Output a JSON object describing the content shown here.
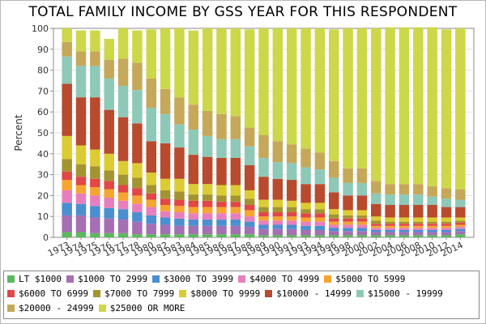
{
  "chart_data": {
    "type": "bar",
    "stacked": true,
    "title": "TOTAL FAMILY INCOME BY GSS YEAR FOR THIS RESPONDENT",
    "ylabel": "Percent",
    "xlabel": "",
    "ylim": [
      0,
      100
    ],
    "yticks": [
      0,
      10,
      20,
      30,
      40,
      50,
      60,
      70,
      80,
      90,
      100
    ],
    "categories": [
      "1973",
      "1974",
      "1975",
      "1976",
      "1977",
      "1978",
      "1980",
      "1982",
      "1983",
      "1984",
      "1985",
      "1986",
      "1987",
      "1988",
      "1989",
      "1990",
      "1991",
      "1993",
      "1994",
      "1996",
      "1998",
      "2000",
      "2002",
      "2004",
      "2006",
      "2008",
      "2010",
      "2012",
      "2014"
    ],
    "xtick_labels": [
      "1973",
      "1974",
      "1975",
      "1976",
      "1977",
      "1978",
      "1980",
      "1982",
      "1983",
      "1984",
      "1985",
      "1986",
      "1987",
      "1988",
      "1989",
      "1990",
      "1991",
      "1993",
      "1994",
      "1996",
      "1998",
      "2000",
      "2002",
      "2004",
      "2006",
      "2008",
      "2010",
      "2012",
      "2014"
    ],
    "grid": true,
    "legend_position": "bottom",
    "series": [
      {
        "name": "LT $1000",
        "color": "#5cb85c",
        "values": [
          2.5,
          2.5,
          2,
          2,
          2,
          1.5,
          1.5,
          1.5,
          1.5,
          1.5,
          1.5,
          1.5,
          1.5,
          1.5,
          1,
          1,
          1,
          1,
          1,
          1,
          1,
          1,
          1,
          1,
          1,
          1,
          1,
          1,
          1.5
        ]
      },
      {
        "name": "$1000 TO 2999",
        "color": "#a56fb4",
        "values": [
          8,
          8,
          7.5,
          7,
          6.5,
          6,
          5,
          4.5,
          4,
          4,
          4,
          4,
          4,
          3.5,
          3,
          3,
          3,
          2.5,
          2.5,
          2,
          2,
          2,
          1.5,
          1.5,
          1.5,
          1.5,
          1.5,
          1.5,
          1.5
        ]
      },
      {
        "name": "$3000 TO 3999",
        "color": "#4a8fd0",
        "values": [
          6,
          5.5,
          5.5,
          5,
          5,
          4.5,
          4,
          3.5,
          3.5,
          3,
          3,
          3,
          3,
          2.5,
          2,
          2,
          2,
          2,
          2,
          1.5,
          1.5,
          1.5,
          1,
          1,
          1,
          1,
          1,
          1,
          1
        ]
      },
      {
        "name": "$4000 TO 4999",
        "color": "#e87fbd",
        "values": [
          6,
          5,
          5,
          5,
          4,
          4,
          4,
          3,
          3,
          3,
          3,
          3,
          3,
          2.5,
          2,
          2,
          2,
          2,
          2,
          1.5,
          1.5,
          1.5,
          1,
          1,
          1,
          1,
          1,
          1,
          1
        ]
      },
      {
        "name": "$5000 TO 5999",
        "color": "#f5a531",
        "values": [
          5,
          4,
          4,
          4,
          4,
          4,
          3.5,
          3,
          3,
          3,
          3,
          3,
          3,
          3,
          2,
          2,
          2,
          2,
          2,
          1.5,
          1.5,
          1.5,
          1,
          1,
          1,
          1,
          1,
          1,
          1
        ]
      },
      {
        "name": "$6000 TO 6999",
        "color": "#e24646",
        "values": [
          4,
          4,
          4,
          4,
          3.5,
          3.5,
          3,
          3,
          3,
          3,
          3,
          2.5,
          2.5,
          2.5,
          2,
          2,
          2,
          2,
          2,
          1.5,
          1.5,
          1.5,
          1,
          1,
          1,
          1,
          1,
          1,
          1
        ]
      },
      {
        "name": "$7000 TO 7999",
        "color": "#a39432",
        "values": [
          6,
          6,
          6,
          5,
          5,
          5,
          4,
          4,
          4,
          3,
          3,
          3,
          3,
          3,
          2.5,
          2.5,
          2.5,
          2,
          2,
          2,
          1.5,
          1.5,
          1.5,
          1,
          1,
          1,
          1,
          1,
          1
        ]
      },
      {
        "name": "$8000 TO 9999",
        "color": "#dccc33",
        "values": [
          11,
          9,
          8,
          8,
          6.5,
          7,
          6,
          5.5,
          6,
          5,
          5,
          5,
          5,
          4,
          3.5,
          3.5,
          3,
          3,
          3,
          2.5,
          2.5,
          2.5,
          2,
          2,
          2,
          2,
          2,
          2,
          1.5
        ]
      },
      {
        "name": "$10000 - 14999",
        "color": "#b84a2e",
        "values": [
          25,
          23,
          25,
          21,
          21,
          19,
          15,
          17,
          15,
          14,
          13,
          13,
          13,
          12,
          11,
          10,
          10,
          9,
          9,
          8,
          7,
          7,
          6,
          6,
          6,
          6,
          6,
          5,
          5
        ]
      },
      {
        "name": "$15000 - 19999",
        "color": "#8ec9b8",
        "values": [
          13,
          15,
          15,
          15,
          15,
          16,
          16,
          14,
          11,
          12,
          10,
          9,
          9,
          9,
          9,
          8,
          8,
          8,
          7,
          7,
          6,
          6,
          5,
          5,
          5,
          5,
          4,
          4,
          3.5
        ]
      },
      {
        "name": "$20000 - 24999",
        "color": "#c6a85a",
        "values": [
          7,
          7,
          7,
          9,
          13,
          13,
          14,
          12,
          13,
          12,
          12,
          12,
          11,
          9,
          11,
          10,
          9,
          9,
          8,
          8,
          7,
          7,
          6,
          5,
          5,
          5,
          5,
          5,
          5
        ]
      },
      {
        "name": "$25000 OR MORE",
        "color": "#ccd84a",
        "values": [
          6.5,
          10,
          10,
          10,
          14.5,
          15.5,
          23.5,
          29,
          33,
          35.5,
          39.5,
          41,
          42,
          47,
          51,
          54,
          55.5,
          57.5,
          59.5,
          63,
          67,
          67,
          73,
          75,
          75,
          75,
          76,
          76,
          77
        ]
      }
    ]
  }
}
